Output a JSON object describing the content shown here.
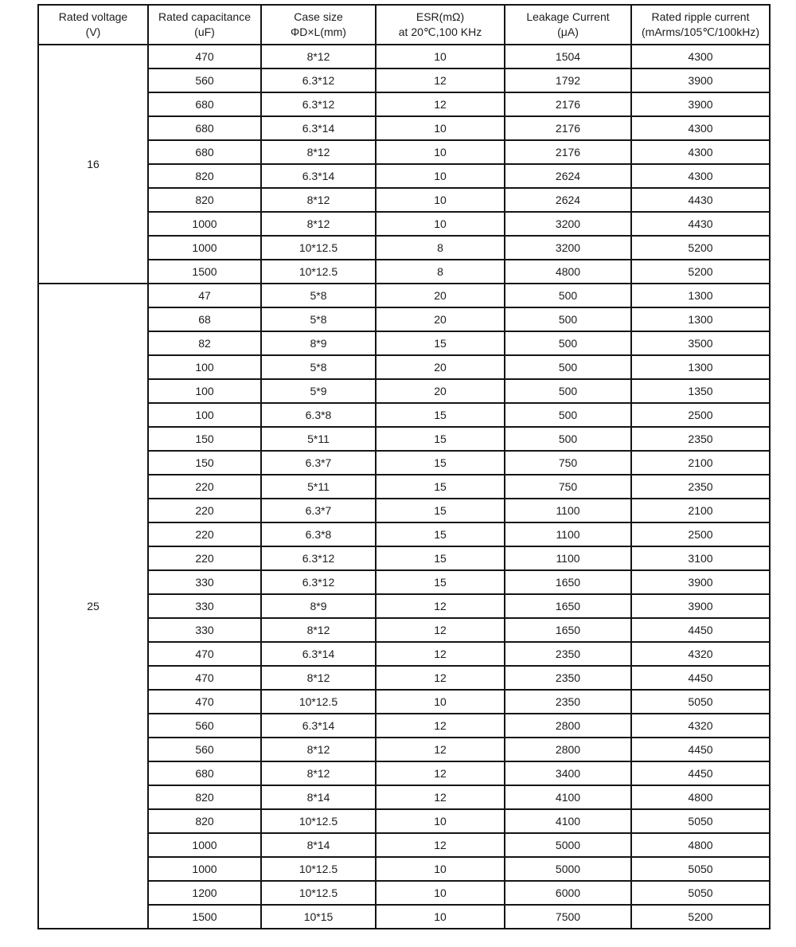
{
  "table": {
    "headers": [
      {
        "line1": "Rated voltage",
        "line2": "(V)"
      },
      {
        "line1": "Rated capacitance",
        "line2": "(uF)"
      },
      {
        "line1": "Case  size",
        "line2": "ΦD×L(mm)"
      },
      {
        "line1": "ESR(mΩ)",
        "line2": "at 20℃,100 KHz"
      },
      {
        "line1": "Leakage Current",
        "line2": "(μA)"
      },
      {
        "line1": "Rated ripple current",
        "line2": "(mArms/105℃/100kHz)"
      }
    ],
    "groups": [
      {
        "voltage": "16",
        "rows": [
          [
            "470",
            "8*12",
            "10",
            "1504",
            "4300"
          ],
          [
            "560",
            "6.3*12",
            "12",
            "1792",
            "3900"
          ],
          [
            "680",
            "6.3*12",
            "12",
            "2176",
            "3900"
          ],
          [
            "680",
            "6.3*14",
            "10",
            "2176",
            "4300"
          ],
          [
            "680",
            "8*12",
            "10",
            "2176",
            "4300"
          ],
          [
            "820",
            "6.3*14",
            "10",
            "2624",
            "4300"
          ],
          [
            "820",
            "8*12",
            "10",
            "2624",
            "4430"
          ],
          [
            "1000",
            "8*12",
            "10",
            "3200",
            "4430"
          ],
          [
            "1000",
            "10*12.5",
            "8",
            "3200",
            "5200"
          ],
          [
            "1500",
            "10*12.5",
            "8",
            "4800",
            "5200"
          ]
        ]
      },
      {
        "voltage": "25",
        "rows": [
          [
            "47",
            "5*8",
            "20",
            "500",
            "1300"
          ],
          [
            "68",
            "5*8",
            "20",
            "500",
            "1300"
          ],
          [
            "82",
            "8*9",
            "15",
            "500",
            "3500"
          ],
          [
            "100",
            "5*8",
            "20",
            "500",
            "1300"
          ],
          [
            "100",
            "5*9",
            "20",
            "500",
            "1350"
          ],
          [
            "100",
            "6.3*8",
            "15",
            "500",
            "2500"
          ],
          [
            "150",
            "5*11",
            "15",
            "500",
            "2350"
          ],
          [
            "150",
            "6.3*7",
            "15",
            "750",
            "2100"
          ],
          [
            "220",
            "5*11",
            "15",
            "750",
            "2350"
          ],
          [
            "220",
            "6.3*7",
            "15",
            "1100",
            "2100"
          ],
          [
            "220",
            "6.3*8",
            "15",
            "1100",
            "2500"
          ],
          [
            "220",
            "6.3*12",
            "15",
            "1100",
            "3100"
          ],
          [
            "330",
            "6.3*12",
            "15",
            "1650",
            "3900"
          ],
          [
            "330",
            "8*9",
            "12",
            "1650",
            "3900"
          ],
          [
            "330",
            "8*12",
            "12",
            "1650",
            "4450"
          ],
          [
            "470",
            "6.3*14",
            "12",
            "2350",
            "4320"
          ],
          [
            "470",
            "8*12",
            "12",
            "2350",
            "4450"
          ],
          [
            "470",
            "10*12.5",
            "10",
            "2350",
            "5050"
          ],
          [
            "560",
            "6.3*14",
            "12",
            "2800",
            "4320"
          ],
          [
            "560",
            "8*12",
            "12",
            "2800",
            "4450"
          ],
          [
            "680",
            "8*12",
            "12",
            "3400",
            "4450"
          ],
          [
            "820",
            "8*14",
            "12",
            "4100",
            "4800"
          ],
          [
            "820",
            "10*12.5",
            "10",
            "4100",
            "5050"
          ],
          [
            "1000",
            "8*14",
            "12",
            "5000",
            "4800"
          ],
          [
            "1000",
            "10*12.5",
            "10",
            "5000",
            "5050"
          ],
          [
            "1200",
            "10*12.5",
            "10",
            "6000",
            "5050"
          ],
          [
            "1500",
            "10*15",
            "10",
            "7500",
            "5200"
          ]
        ]
      }
    ]
  }
}
